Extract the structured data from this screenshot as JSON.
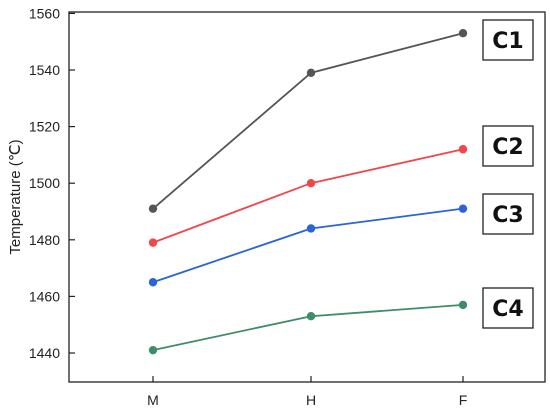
{
  "chart_data": {
    "type": "line",
    "categories": [
      "M",
      "H",
      "F"
    ],
    "ylabel": "Temperature (℃)",
    "ylim": [
      1430,
      1560
    ],
    "yticks": [
      1440,
      1460,
      1480,
      1500,
      1520,
      1540,
      1560
    ],
    "series": [
      {
        "name": "C1",
        "values": [
          1491,
          1539,
          1553
        ],
        "color": "#555555"
      },
      {
        "name": "C2",
        "values": [
          1479,
          1500,
          1512
        ],
        "color": "#f0474a"
      },
      {
        "name": "C3",
        "values": [
          1465,
          1484,
          1491
        ],
        "color": "#2a64d6"
      },
      {
        "name": "C4",
        "values": [
          1441,
          1453,
          1457
        ],
        "color": "#3e8c68"
      }
    ]
  }
}
